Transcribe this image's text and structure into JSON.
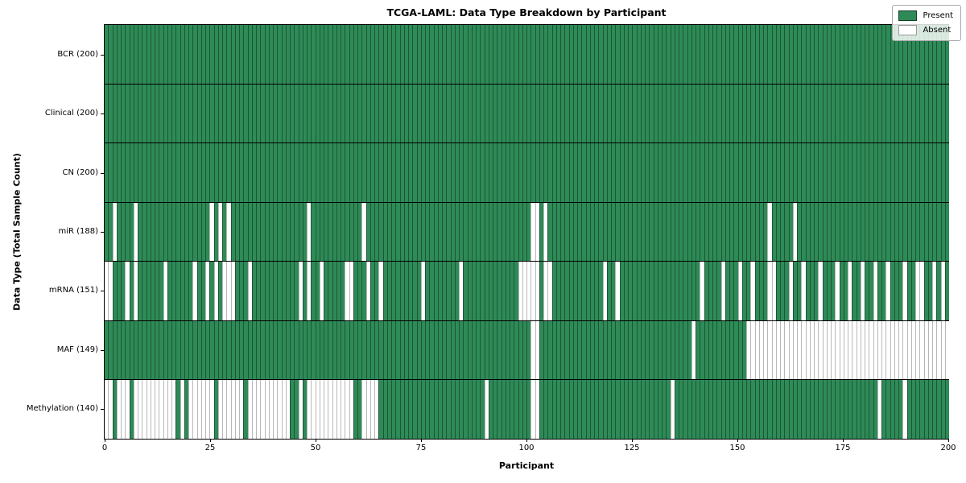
{
  "chart_data": {
    "type": "heatmap",
    "title": "TCGA-LAML: Data Type Breakdown by Participant",
    "xlabel": "Participant",
    "ylabel": "Data Type (Total Sample Count)",
    "x_ticks": [
      0,
      25,
      50,
      75,
      100,
      125,
      150,
      175,
      200
    ],
    "n_participants": 200,
    "x_range": [
      0,
      200
    ],
    "grid": "cell-edges",
    "legend_position": "upper right",
    "legend": [
      {
        "label": "Present",
        "color": "#2e8b57"
      },
      {
        "label": "Absent",
        "color": "#ffffff"
      }
    ],
    "rows": [
      {
        "label": "BCR (200)",
        "present_count": 200,
        "absent_participants": []
      },
      {
        "label": "Clinical (200)",
        "present_count": 200,
        "absent_participants": []
      },
      {
        "label": "CN (200)",
        "present_count": 200,
        "absent_participants": []
      },
      {
        "label": "miR (188)",
        "present_count": 188,
        "absent_participants": [
          2,
          7,
          25,
          27,
          29,
          48,
          61,
          101,
          102,
          104,
          157,
          163
        ]
      },
      {
        "label": "mRNA (151)",
        "present_count": 151,
        "absent_participants": [
          0,
          1,
          5,
          7,
          14,
          21,
          24,
          26,
          28,
          29,
          30,
          34,
          46,
          48,
          51,
          57,
          58,
          62,
          65,
          75,
          84,
          98,
          99,
          100,
          101,
          102,
          104,
          105,
          118,
          121,
          141,
          146,
          150,
          153,
          157,
          158,
          162,
          165,
          169,
          173,
          176,
          179,
          182,
          185,
          189,
          192,
          193,
          196,
          198
        ]
      },
      {
        "label": "MAF (149)",
        "present_count": 149,
        "absent_participants": [
          101,
          102,
          139,
          152,
          153,
          154,
          155,
          156,
          157,
          158,
          159,
          160,
          161,
          162,
          163,
          164,
          165,
          166,
          167,
          168,
          169,
          170,
          171,
          172,
          173,
          174,
          175,
          176,
          177,
          178,
          179,
          180,
          181,
          182,
          183,
          184,
          185,
          186,
          187,
          188,
          189,
          190,
          191,
          192,
          193,
          194,
          195,
          196,
          197,
          198,
          199
        ]
      },
      {
        "label": "Methylation (140)",
        "present_count": 140,
        "absent_participants": [
          0,
          1,
          3,
          4,
          5,
          7,
          8,
          9,
          10,
          11,
          12,
          13,
          14,
          15,
          16,
          18,
          20,
          21,
          22,
          23,
          24,
          25,
          27,
          28,
          29,
          30,
          31,
          32,
          34,
          35,
          36,
          37,
          38,
          39,
          40,
          41,
          42,
          43,
          46,
          48,
          49,
          50,
          51,
          52,
          53,
          54,
          55,
          56,
          57,
          58,
          61,
          62,
          63,
          64,
          90,
          101,
          102,
          134,
          183,
          189
        ]
      }
    ]
  }
}
